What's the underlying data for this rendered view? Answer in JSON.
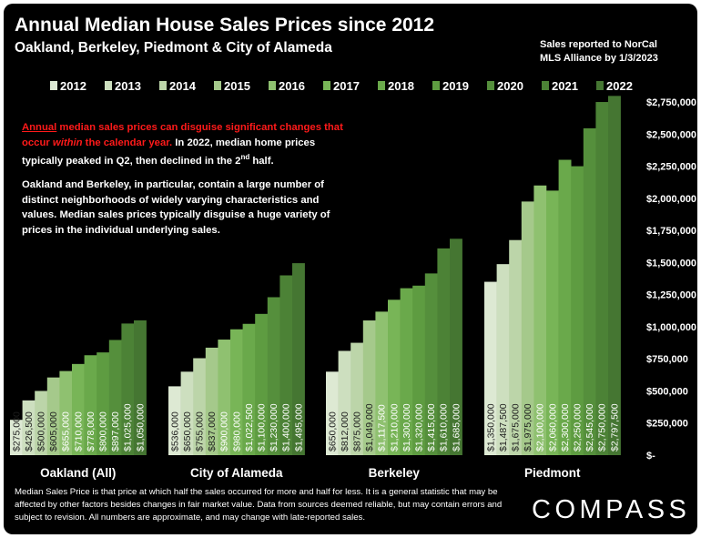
{
  "header": {
    "title": "Annual Median House Sales Prices since 2012",
    "subtitle": "Oakland, Berkeley, Piedmont & City of Alameda",
    "source_line1": "Sales reported to NorCal",
    "source_line2": "MLS Alliance by 1/3/2023"
  },
  "note": {
    "p1_red_underlined": "Annual",
    "p1_red_a": " median sales prices can disguise significant changes that occur ",
    "p1_red_italic": "within",
    "p1_red_b": " the calendar year.",
    "p1_white": " In 2022, median home prices typically peaked in Q2, then declined in the 2",
    "p1_sup": "nd",
    "p1_end": " half.",
    "p2": "Oakland and Berkeley, in particular, contain a large number of distinct neighborhoods of widely varying characteristics and values. Median sales prices typically disguise a huge variety of prices in the individual underlying sales."
  },
  "footnote": "Median Sales Price is that price at which half the sales occurred for more and half for less. It is a general statistic that may be affected by other factors besides changes in fair market value. Data from sources deemed reliable, but may contain errors and subject to revision.  All numbers are approximate, and may change with late-reported sales.",
  "logo": "COMPASS",
  "colors": {
    "background": "#000000",
    "series": [
      "#dde9d3",
      "#cddfbf",
      "#bcd5a9",
      "#a5c98b",
      "#8fc170",
      "#78b557",
      "#6aa94b",
      "#5e9c41",
      "#558f3c",
      "#4c8236",
      "#457632"
    ],
    "note_red": "#ff1a1a"
  },
  "chart_data": {
    "type": "bar",
    "title": "Annual Median House Sales Prices since 2012",
    "subtitle": "Oakland, Berkeley, Piedmont & City of Alameda",
    "categories": [
      "Oakland (All)",
      "City of Alameda",
      "Berkeley",
      "Piedmont"
    ],
    "series_names": [
      "2012",
      "2013",
      "2014",
      "2015",
      "2016",
      "2017",
      "2018",
      "2019",
      "2020",
      "2021",
      "2022"
    ],
    "values": [
      [
        275000,
        426500,
        500000,
        605000,
        655000,
        710000,
        778000,
        800000,
        897000,
        1025000,
        1050000
      ],
      [
        536000,
        650000,
        755000,
        837000,
        900000,
        980000,
        1022500,
        1100000,
        1230000,
        1400000,
        1495000
      ],
      [
        650000,
        812000,
        875000,
        1049000,
        1117500,
        1210000,
        1300000,
        1320000,
        1415000,
        1610000,
        1685000
      ],
      [
        1350000,
        1487500,
        1675000,
        1975000,
        2100000,
        2060000,
        2300000,
        2250000,
        2545000,
        2750000,
        2797500
      ]
    ],
    "data_labels": [
      [
        "$275,000",
        "$426,500",
        "$500,000",
        "$605,000",
        "$655,000",
        "$710,000",
        "$778,000",
        "$800,000",
        "$897,000",
        "$1,025,000",
        "$1,050,000"
      ],
      [
        "$536,000",
        "$650,000",
        "$755,000",
        "$837,000",
        "$900,000",
        "$980,000",
        "$1,022,500",
        "$1,100,000",
        "$1,230,000",
        "$1,400,000",
        "$1,495,000"
      ],
      [
        "$650,000",
        "$812,000",
        "$875,000",
        "$1,049,000",
        "$1,117,500",
        "$1,210,000",
        "$1,300,000",
        "$1,320,000",
        "$1,415,000",
        "$1,610,000",
        "$1,685,000"
      ],
      [
        "$1,350,000",
        "$1,487,500",
        "$1,675,000",
        "$1,975,000",
        "$2,100,000",
        "$2,060,000",
        "$2,300,000",
        "$2,250,000",
        "$2,545,000",
        "$2,750,000",
        "$2,797,500"
      ]
    ],
    "y_ticks": [
      0,
      250000,
      500000,
      750000,
      1000000,
      1250000,
      1500000,
      1750000,
      2000000,
      2250000,
      2500000,
      2750000
    ],
    "y_tick_labels": [
      "$-",
      "$250,000",
      "$500,000",
      "$750,000",
      "$1,000,000",
      "$1,250,000",
      "$1,500,000",
      "$1,750,000",
      "$2,000,000",
      "$2,250,000",
      "$2,500,000",
      "$2,750,000"
    ],
    "ylim": [
      0,
      2800000
    ],
    "y_axis_side": "right",
    "legend_position": "top",
    "grid": false
  }
}
